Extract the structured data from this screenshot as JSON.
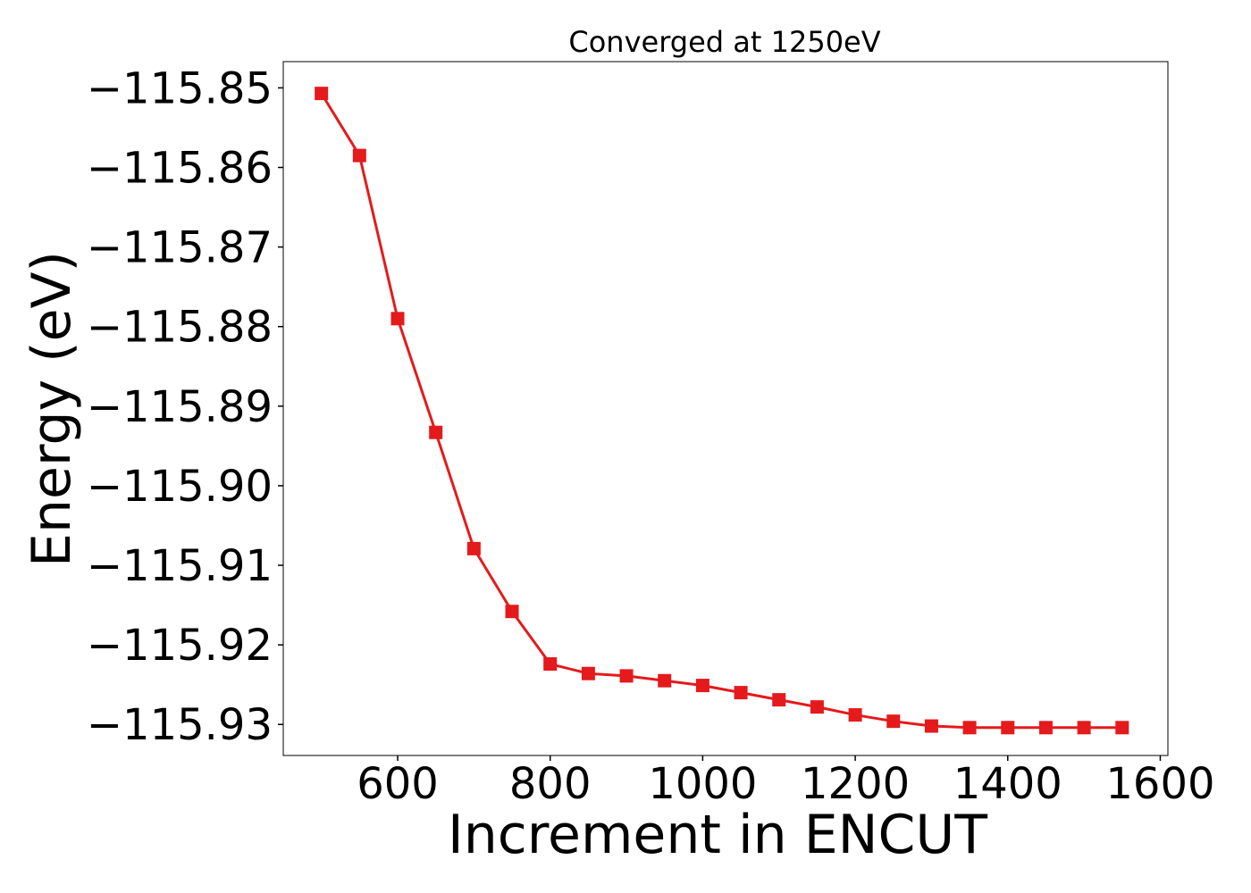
{
  "chart_data": {
    "type": "line",
    "title": "Converged at 1250eV",
    "xlabel": "Increment in ENCUT",
    "ylabel": "Energy (eV)",
    "xlim": [
      450,
      1610
    ],
    "ylim": [
      -115.9339,
      -115.8467
    ],
    "xticks": [
      600,
      800,
      1000,
      1200,
      1400,
      1600
    ],
    "xtick_labels": [
      "600",
      "800",
      "1000",
      "1200",
      "1400",
      "1600"
    ],
    "yticks": [
      -115.85,
      -115.86,
      -115.87,
      -115.88,
      -115.89,
      -115.9,
      -115.91,
      -115.92,
      -115.93
    ],
    "ytick_labels": [
      "−115.85",
      "−115.86",
      "−115.87",
      "−115.88",
      "−115.89",
      "−115.90",
      "−115.91",
      "−115.92",
      "−115.93"
    ],
    "grid": false,
    "series": [
      {
        "marker": "square",
        "color": "#e41a1c",
        "x": [
          500,
          550,
          600,
          650,
          700,
          750,
          800,
          850,
          900,
          950,
          1000,
          1050,
          1100,
          1150,
          1200,
          1250,
          1300,
          1350,
          1400,
          1450,
          1500,
          1550
        ],
        "y": [
          -115.8507,
          -115.8585,
          -115.879,
          -115.8933,
          -115.9079,
          -115.9158,
          -115.9224,
          -115.9236,
          -115.9239,
          -115.9245,
          -115.9251,
          -115.926,
          -115.9269,
          -115.9278,
          -115.9288,
          -115.9296,
          -115.9302,
          -115.9304,
          -115.9304,
          -115.9304,
          -115.9304,
          -115.9304
        ]
      }
    ]
  }
}
